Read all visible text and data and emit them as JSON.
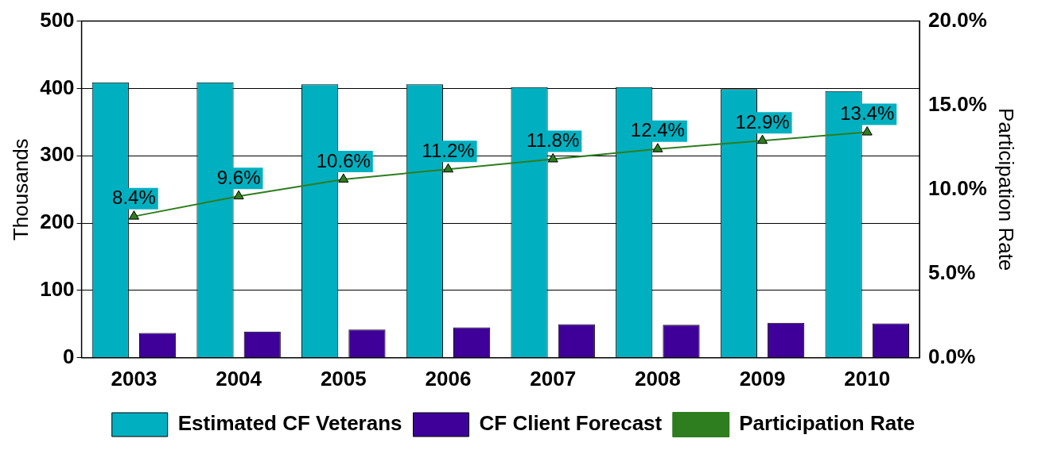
{
  "chart_data": {
    "type": "bar",
    "categories": [
      "2003",
      "2004",
      "2005",
      "2006",
      "2007",
      "2008",
      "2009",
      "2010"
    ],
    "ylabel": "Thousands",
    "y2label": "Participation Rate",
    "ylim": [
      0,
      500
    ],
    "yticks": [
      0,
      100,
      200,
      300,
      400,
      500
    ],
    "y2lim": [
      0,
      20
    ],
    "y2ticks": [
      {
        "value": 0,
        "label": "0.0%"
      },
      {
        "value": 5,
        "label": "5.0%"
      },
      {
        "value": 10,
        "label": "10.0%"
      },
      {
        "value": 15,
        "label": "15.0%"
      },
      {
        "value": 20,
        "label": "20.0%"
      }
    ],
    "grid": "y",
    "legend": "bottom",
    "series": [
      {
        "name": "Estimated CF Veterans",
        "color": "#00b0c0",
        "values": [
          409,
          409,
          406,
          406,
          402,
          402,
          399,
          396
        ]
      },
      {
        "name": "CF Client Forecast",
        "color": "#3f0099",
        "values": [
          37,
          39,
          42,
          45,
          50,
          49,
          52,
          51
        ]
      },
      {
        "name": "Participation Rate",
        "type": "line",
        "axis": "y2",
        "color": "#2e7d1e",
        "marker": "triangle",
        "values": [
          8.4,
          9.6,
          10.6,
          11.2,
          11.8,
          12.4,
          12.9,
          13.4
        ],
        "value_labels": [
          "8.4%",
          "9.6%",
          "10.6%",
          "11.2%",
          "11.8%",
          "12.4%",
          "12.9%",
          "13.4%"
        ]
      }
    ]
  }
}
